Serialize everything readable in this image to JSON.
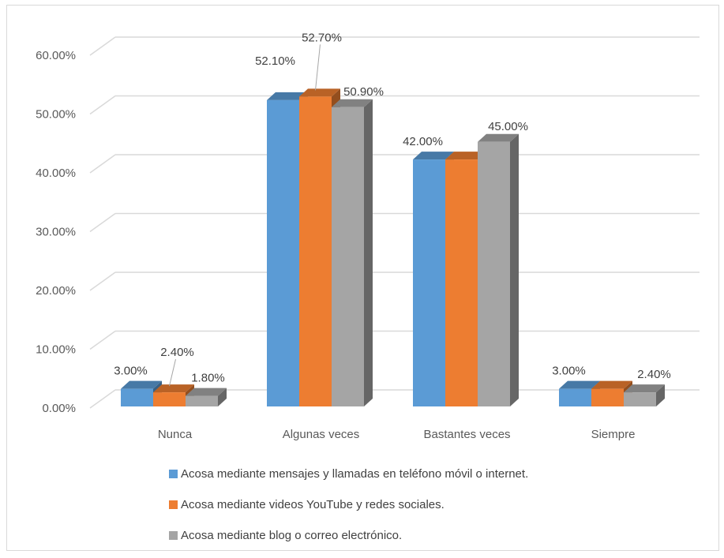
{
  "chart_data": {
    "type": "bar",
    "three_d": true,
    "categories": [
      "Nunca",
      "Algunas veces",
      "Bastantes veces",
      "Siempre"
    ],
    "series": [
      {
        "name": "Acosa mediante mensajes y llamadas en teléfono móvil o internet.",
        "values": [
          3.0,
          52.1,
          42.0,
          3.0
        ],
        "labels": [
          "3.00%",
          "52.10%",
          "42.00%",
          "3.00%"
        ],
        "color": "#5b9bd5"
      },
      {
        "name": "Acosa mediante videos YouTube y redes sociales.",
        "values": [
          2.4,
          52.7,
          42.0,
          3.0
        ],
        "labels": [
          "2.40%",
          "52.70%",
          "",
          ""
        ],
        "color": "#ed7d31"
      },
      {
        "name": "Acosa mediante blog o correo electrónico.",
        "values": [
          1.8,
          50.9,
          45.0,
          2.4
        ],
        "labels": [
          "1.80%",
          "50.90%",
          "45.00%",
          "2.40%"
        ],
        "color": "#a5a5a5"
      }
    ],
    "y_ticks": [
      "0.00%",
      "10.00%",
      "20.00%",
      "30.00%",
      "40.00%",
      "50.00%",
      "60.00%"
    ],
    "ylim": [
      0,
      60
    ],
    "grid": true,
    "legend_position": "bottom"
  }
}
